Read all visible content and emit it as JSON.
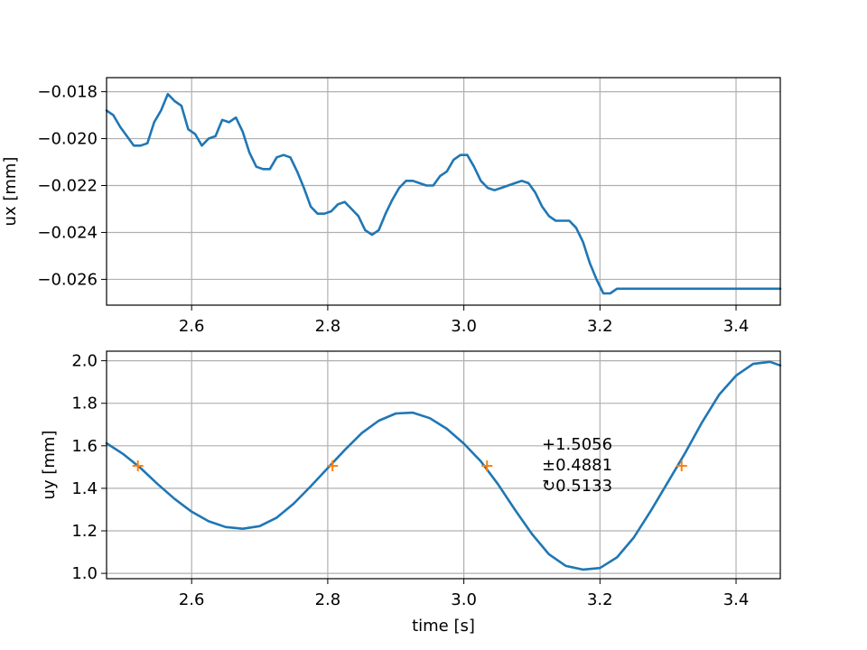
{
  "colors": {
    "series": "#1f77b4",
    "marker": "#ff7f0e",
    "grid": "#b0b0b0"
  },
  "chart_data": [
    {
      "type": "line",
      "title": "",
      "xlabel": "",
      "ylabel": "ux [mm]",
      "xlim": [
        2.475,
        3.465
      ],
      "ylim": [
        -0.0271,
        -0.0174
      ],
      "grid": true,
      "xticks": [
        2.6,
        2.8,
        3.0,
        3.2,
        3.4
      ],
      "xtick_labels": [
        "2.6",
        "2.8",
        "3.0",
        "3.2",
        "3.4"
      ],
      "yticks": [
        -0.018,
        -0.02,
        -0.022,
        -0.024,
        -0.026
      ],
      "ytick_labels": [
        "−0.018",
        "−0.020",
        "−0.022",
        "−0.024",
        "−0.026"
      ],
      "series": [
        {
          "x": [
            2.475,
            2.485,
            2.495,
            2.505,
            2.515,
            2.525,
            2.535,
            2.545,
            2.555,
            2.565,
            2.575,
            2.585,
            2.595,
            2.605,
            2.615,
            2.625,
            2.635,
            2.645,
            2.655,
            2.665,
            2.675,
            2.685,
            2.695,
            2.705,
            2.715,
            2.725,
            2.735,
            2.745,
            2.755,
            2.765,
            2.775,
            2.785,
            2.795,
            2.805,
            2.815,
            2.825,
            2.835,
            2.845,
            2.855,
            2.865,
            2.875,
            2.885,
            2.895,
            2.905,
            2.915,
            2.925,
            2.935,
            2.945,
            2.955,
            2.965,
            2.975,
            2.985,
            2.995,
            3.005,
            3.015,
            3.025,
            3.035,
            3.045,
            3.055,
            3.065,
            3.075,
            3.085,
            3.095,
            3.105,
            3.115,
            3.125,
            3.135,
            3.145,
            3.155,
            3.165,
            3.175,
            3.185,
            3.195,
            3.205,
            3.215,
            3.225,
            3.235,
            3.245,
            3.255,
            3.265,
            3.275,
            3.285,
            3.295,
            3.305,
            3.315,
            3.325,
            3.335,
            3.345,
            3.355,
            3.365,
            3.375,
            3.385,
            3.395,
            3.405,
            3.415,
            3.425,
            3.435,
            3.445,
            3.455,
            3.465
          ],
          "values": [
            -0.0188,
            -0.019,
            -0.0195,
            -0.0199,
            -0.0203,
            -0.0203,
            -0.0202,
            -0.0193,
            -0.0188,
            -0.0181,
            -0.0184,
            -0.0186,
            -0.0196,
            -0.0198,
            -0.0203,
            -0.02,
            -0.0199,
            -0.0192,
            -0.0193,
            -0.0191,
            -0.0197,
            -0.0206,
            -0.0212,
            -0.0213,
            -0.0213,
            -0.0208,
            -0.0207,
            -0.0208,
            -0.0214,
            -0.0221,
            -0.0229,
            -0.0232,
            -0.0232,
            -0.0231,
            -0.0228,
            -0.0227,
            -0.023,
            -0.0233,
            -0.0239,
            -0.0241,
            -0.0239,
            -0.0232,
            -0.0226,
            -0.0221,
            -0.0218,
            -0.0218,
            -0.0219,
            -0.022,
            -0.022,
            -0.0216,
            -0.0214,
            -0.0209,
            -0.0207,
            -0.0207,
            -0.0212,
            -0.0218,
            -0.0221,
            -0.0222,
            -0.0221,
            -0.022,
            -0.0219,
            -0.0218,
            -0.0219,
            -0.0223,
            -0.0229,
            -0.0233,
            -0.0235,
            -0.0235,
            -0.0235,
            -0.0238,
            -0.0244,
            -0.0253,
            -0.026,
            -0.0266,
            -0.0266,
            -0.0264,
            -0.0264,
            -0.0264,
            -0.0264,
            -0.0264,
            -0.0264,
            -0.0264,
            -0.0264,
            -0.0264,
            -0.0264,
            -0.0264,
            -0.0264,
            -0.0264,
            -0.0264,
            -0.0264,
            -0.0264,
            -0.0264,
            -0.0264,
            -0.0264,
            -0.0264,
            -0.0264,
            -0.0264,
            -0.0264,
            -0.0264,
            -0.0264
          ]
        }
      ]
    },
    {
      "type": "line",
      "title": "",
      "xlabel": "time [s]",
      "ylabel": "uy [mm]",
      "xlim": [
        2.475,
        3.465
      ],
      "ylim": [
        0.975,
        2.045
      ],
      "grid": true,
      "xticks": [
        2.6,
        2.8,
        3.0,
        3.2,
        3.4
      ],
      "xtick_labels": [
        "2.6",
        "2.8",
        "3.0",
        "3.2",
        "3.4"
      ],
      "yticks": [
        1.0,
        1.2,
        1.4,
        1.6,
        1.8,
        2.0
      ],
      "ytick_labels": [
        "1.0",
        "1.2",
        "1.4",
        "1.6",
        "1.8",
        "2.0"
      ],
      "series": [
        {
          "x": [
            2.475,
            2.5,
            2.525,
            2.55,
            2.575,
            2.6,
            2.625,
            2.65,
            2.675,
            2.7,
            2.725,
            2.75,
            2.775,
            2.8,
            2.825,
            2.85,
            2.875,
            2.9,
            2.925,
            2.95,
            2.975,
            3.0,
            3.025,
            3.05,
            3.075,
            3.1,
            3.125,
            3.15,
            3.175,
            3.2,
            3.225,
            3.25,
            3.275,
            3.3,
            3.325,
            3.35,
            3.375,
            3.4,
            3.425,
            3.45,
            3.465
          ],
          "values": [
            1.612,
            1.56,
            1.495,
            1.42,
            1.35,
            1.29,
            1.245,
            1.218,
            1.21,
            1.222,
            1.262,
            1.328,
            1.41,
            1.495,
            1.58,
            1.66,
            1.718,
            1.752,
            1.756,
            1.73,
            1.68,
            1.61,
            1.527,
            1.42,
            1.3,
            1.185,
            1.09,
            1.035,
            1.018,
            1.025,
            1.075,
            1.17,
            1.295,
            1.43,
            1.565,
            1.71,
            1.84,
            1.93,
            1.985,
            1.995,
            1.978
          ]
        }
      ],
      "markers": {
        "x": [
          2.521,
          2.807,
          3.034,
          3.32
        ],
        "y": [
          1.5056,
          1.5056,
          1.5056,
          1.5056
        ]
      },
      "annotation": [
        "+1.5056",
        "±0.4881",
        "↻0.5133"
      ]
    }
  ]
}
